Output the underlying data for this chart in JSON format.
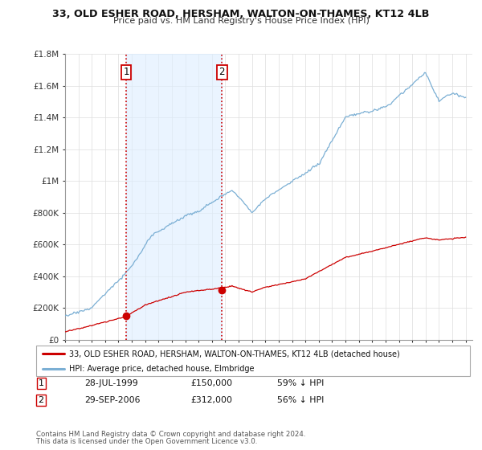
{
  "title": "33, OLD ESHER ROAD, HERSHAM, WALTON-ON-THAMES, KT12 4LB",
  "subtitle": "Price paid vs. HM Land Registry's House Price Index (HPI)",
  "legend_line1": "33, OLD ESHER ROAD, HERSHAM, WALTON-ON-THAMES, KT12 4LB (detached house)",
  "legend_line2": "HPI: Average price, detached house, Elmbridge",
  "footer1": "Contains HM Land Registry data © Crown copyright and database right 2024.",
  "footer2": "This data is licensed under the Open Government Licence v3.0.",
  "table": [
    {
      "num": "1",
      "date": "28-JUL-1999",
      "price": "£150,000",
      "hpi": "59% ↓ HPI"
    },
    {
      "num": "2",
      "date": "29-SEP-2006",
      "price": "£312,000",
      "hpi": "56% ↓ HPI"
    }
  ],
  "hpi_color": "#7bafd4",
  "hpi_fill": "#ddeeff",
  "price_color": "#cc0000",
  "vline_color": "#cc0000",
  "ylim": [
    0,
    1800000
  ],
  "yticks": [
    0,
    200000,
    400000,
    600000,
    800000,
    1000000,
    1200000,
    1400000,
    1600000,
    1800000
  ],
  "ytick_labels": [
    "£0",
    "£200K",
    "£400K",
    "£600K",
    "£800K",
    "£1M",
    "£1.2M",
    "£1.4M",
    "£1.6M",
    "£1.8M"
  ],
  "sale1_year": 1999.58,
  "sale1_price": 150000,
  "sale2_year": 2006.75,
  "sale2_price": 312000,
  "xmin": 1995,
  "xmax": 2025.5
}
